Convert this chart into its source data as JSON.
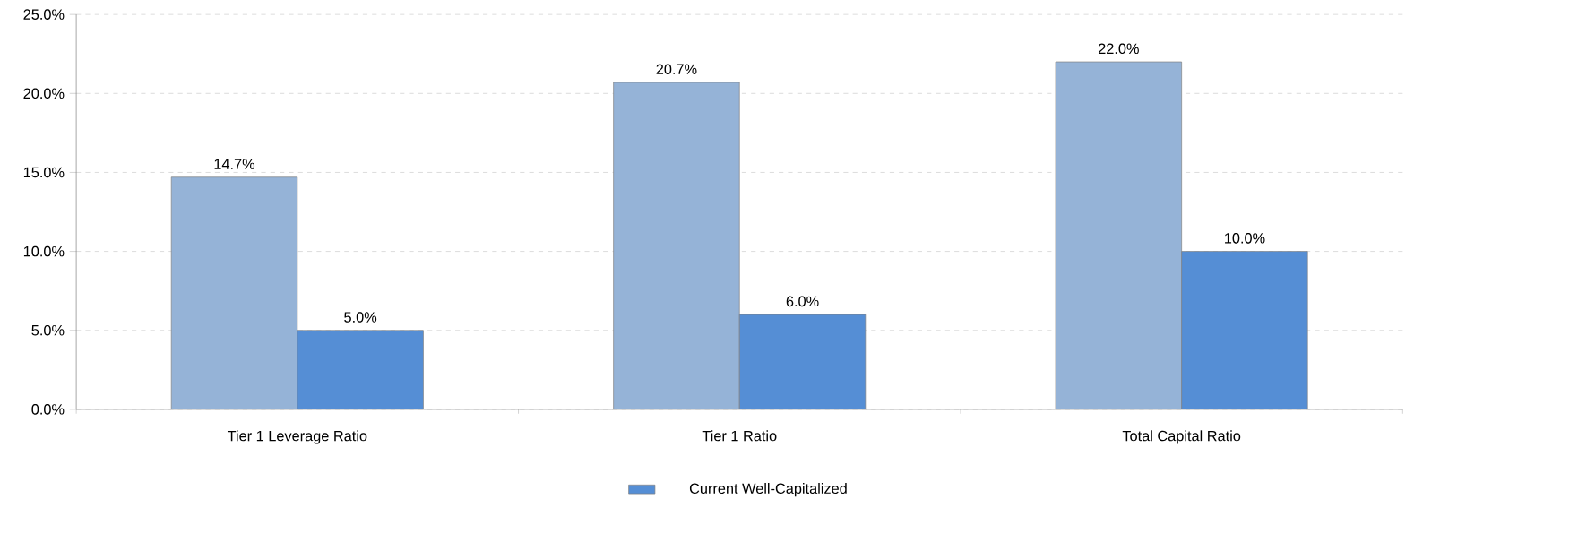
{
  "chart_data": {
    "type": "bar",
    "categories": [
      "Tier 1 Leverage Ratio",
      "Tier 1 Ratio",
      "Total Capital Ratio"
    ],
    "series": [
      {
        "color": "#95b3d7",
        "values": [
          14.7,
          20.7,
          22.0
        ],
        "value_labels": [
          "14.7%",
          "20.7%",
          "22.0%"
        ]
      },
      {
        "name": "Current Well-Capitalized",
        "color": "#558ed5",
        "values": [
          5.0,
          6.0,
          10.0
        ],
        "value_labels": [
          "5.0%",
          "6.0%",
          "10.0%"
        ]
      }
    ],
    "ylim": [
      0,
      25
    ],
    "yticks": [
      {
        "value": 0,
        "label": "0.0%"
      },
      {
        "value": 5,
        "label": "5.0%"
      },
      {
        "value": 10,
        "label": "10.0%"
      },
      {
        "value": 15,
        "label": "15.0%"
      },
      {
        "value": 20,
        "label": "20.0%"
      },
      {
        "value": 25,
        "label": "25.0%"
      }
    ],
    "grid": "y",
    "legend": "bottom"
  }
}
